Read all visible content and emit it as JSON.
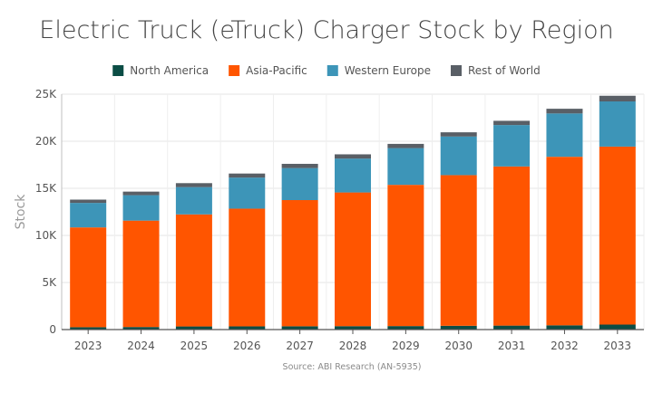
{
  "chart_data": {
    "type": "bar",
    "stacked": true,
    "title": "Electric Truck (eTruck) Charger Stock by Region",
    "xlabel": "",
    "ylabel": "Stock",
    "source": "Source: ABI Research (AN-5935)",
    "categories": [
      "2023",
      "2024",
      "2025",
      "2026",
      "2027",
      "2028",
      "2029",
      "2030",
      "2031",
      "2032",
      "2033"
    ],
    "ylim": [
      0,
      25000
    ],
    "yticks": [
      0,
      5000,
      10000,
      15000,
      20000,
      25000
    ],
    "ytick_labels": [
      "0",
      "5K",
      "10K",
      "15K",
      "20K",
      "25K"
    ],
    "grid": true,
    "legend_position": "top",
    "series": [
      {
        "name": "North America",
        "color": "#0b4d45",
        "values": [
          250,
          270,
          330,
          340,
          350,
          360,
          370,
          400,
          420,
          450,
          530
        ]
      },
      {
        "name": "Asia-Pacific",
        "color": "#ff5500",
        "values": [
          10600,
          11300,
          11900,
          12500,
          13400,
          14200,
          15000,
          16000,
          16900,
          17900,
          18900
        ]
      },
      {
        "name": "Western Europe",
        "color": "#3d95b8",
        "values": [
          2600,
          2700,
          2900,
          3300,
          3400,
          3600,
          3900,
          4100,
          4400,
          4600,
          4800
        ]
      },
      {
        "name": "Rest of World",
        "color": "#595f66",
        "values": [
          350,
          380,
          420,
          430,
          450,
          450,
          450,
          450,
          450,
          500,
          600
        ]
      }
    ]
  }
}
